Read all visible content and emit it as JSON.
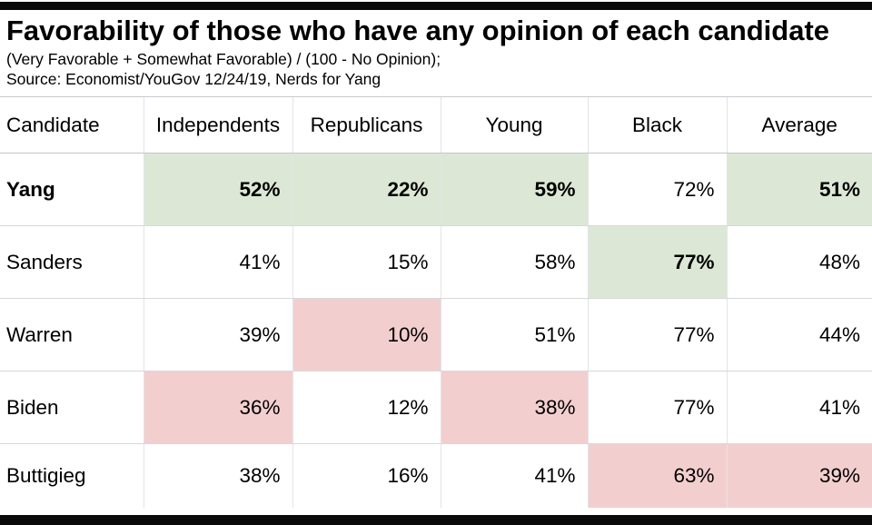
{
  "header": {
    "title": "Favorability of those who have any opinion of each candidate",
    "subtitle": "(Very Favorable + Somewhat Favorable) / (100 - No Opinion);",
    "source": "Source: Economist/YouGov 12/24/19, Nerds for Yang"
  },
  "colors": {
    "green": "#dce8d5",
    "pink": "#f2cfce",
    "white": "#ffffff",
    "frame_bar": "#0a0a0a"
  },
  "table": {
    "columns": [
      "Candidate",
      "Independents",
      "Republicans",
      "Young",
      "Black",
      "Average"
    ],
    "rows": [
      {
        "candidate": {
          "label": "Yang",
          "bold": true
        },
        "cells": [
          {
            "value": "52%",
            "bg": "green",
            "bold": true
          },
          {
            "value": "22%",
            "bg": "green",
            "bold": true
          },
          {
            "value": "59%",
            "bg": "green",
            "bold": true
          },
          {
            "value": "72%",
            "bg": "white",
            "bold": false
          },
          {
            "value": "51%",
            "bg": "green",
            "bold": true
          }
        ]
      },
      {
        "candidate": {
          "label": "Sanders",
          "bold": false
        },
        "cells": [
          {
            "value": "41%",
            "bg": "white",
            "bold": false
          },
          {
            "value": "15%",
            "bg": "white",
            "bold": false
          },
          {
            "value": "58%",
            "bg": "white",
            "bold": false
          },
          {
            "value": "77%",
            "bg": "green",
            "bold": true
          },
          {
            "value": "48%",
            "bg": "white",
            "bold": false
          }
        ]
      },
      {
        "candidate": {
          "label": "Warren",
          "bold": false
        },
        "cells": [
          {
            "value": "39%",
            "bg": "white",
            "bold": false
          },
          {
            "value": "10%",
            "bg": "pink",
            "bold": false
          },
          {
            "value": "51%",
            "bg": "white",
            "bold": false
          },
          {
            "value": "77%",
            "bg": "white",
            "bold": false
          },
          {
            "value": "44%",
            "bg": "white",
            "bold": false
          }
        ]
      },
      {
        "candidate": {
          "label": "Biden",
          "bold": false
        },
        "cells": [
          {
            "value": "36%",
            "bg": "pink",
            "bold": false
          },
          {
            "value": "12%",
            "bg": "white",
            "bold": false
          },
          {
            "value": "38%",
            "bg": "pink",
            "bold": false
          },
          {
            "value": "77%",
            "bg": "white",
            "bold": false
          },
          {
            "value": "41%",
            "bg": "white",
            "bold": false
          }
        ]
      },
      {
        "candidate": {
          "label": "Buttigieg",
          "bold": false
        },
        "cells": [
          {
            "value": "38%",
            "bg": "white",
            "bold": false
          },
          {
            "value": "16%",
            "bg": "white",
            "bold": false
          },
          {
            "value": "41%",
            "bg": "white",
            "bold": false
          },
          {
            "value": "63%",
            "bg": "pink",
            "bold": false
          },
          {
            "value": "39%",
            "bg": "pink",
            "bold": false
          }
        ]
      }
    ]
  },
  "chart_data": {
    "type": "table",
    "title": "Favorability of those who have any opinion of each candidate",
    "subtitle": "(Very Favorable + Somewhat Favorable) / (100 - No Opinion);",
    "source": "Source: Economist/YouGov 12/24/19, Nerds for Yang",
    "categories": [
      "Independents",
      "Republicans",
      "Young",
      "Black",
      "Average"
    ],
    "series": [
      {
        "name": "Yang",
        "values": [
          52,
          22,
          59,
          72,
          51
        ]
      },
      {
        "name": "Sanders",
        "values": [
          41,
          15,
          58,
          77,
          48
        ]
      },
      {
        "name": "Warren",
        "values": [
          39,
          10,
          51,
          77,
          44
        ]
      },
      {
        "name": "Biden",
        "values": [
          36,
          12,
          38,
          77,
          41
        ]
      },
      {
        "name": "Buttigieg",
        "values": [
          38,
          16,
          41,
          63,
          39
        ]
      }
    ],
    "highlight_green_cells": [
      [
        "Yang",
        "Independents"
      ],
      [
        "Yang",
        "Republicans"
      ],
      [
        "Yang",
        "Young"
      ],
      [
        "Yang",
        "Average"
      ],
      [
        "Sanders",
        "Black"
      ]
    ],
    "highlight_pink_cells": [
      [
        "Warren",
        "Republicans"
      ],
      [
        "Biden",
        "Independents"
      ],
      [
        "Biden",
        "Young"
      ],
      [
        "Buttigieg",
        "Black"
      ],
      [
        "Buttigieg",
        "Average"
      ]
    ]
  }
}
